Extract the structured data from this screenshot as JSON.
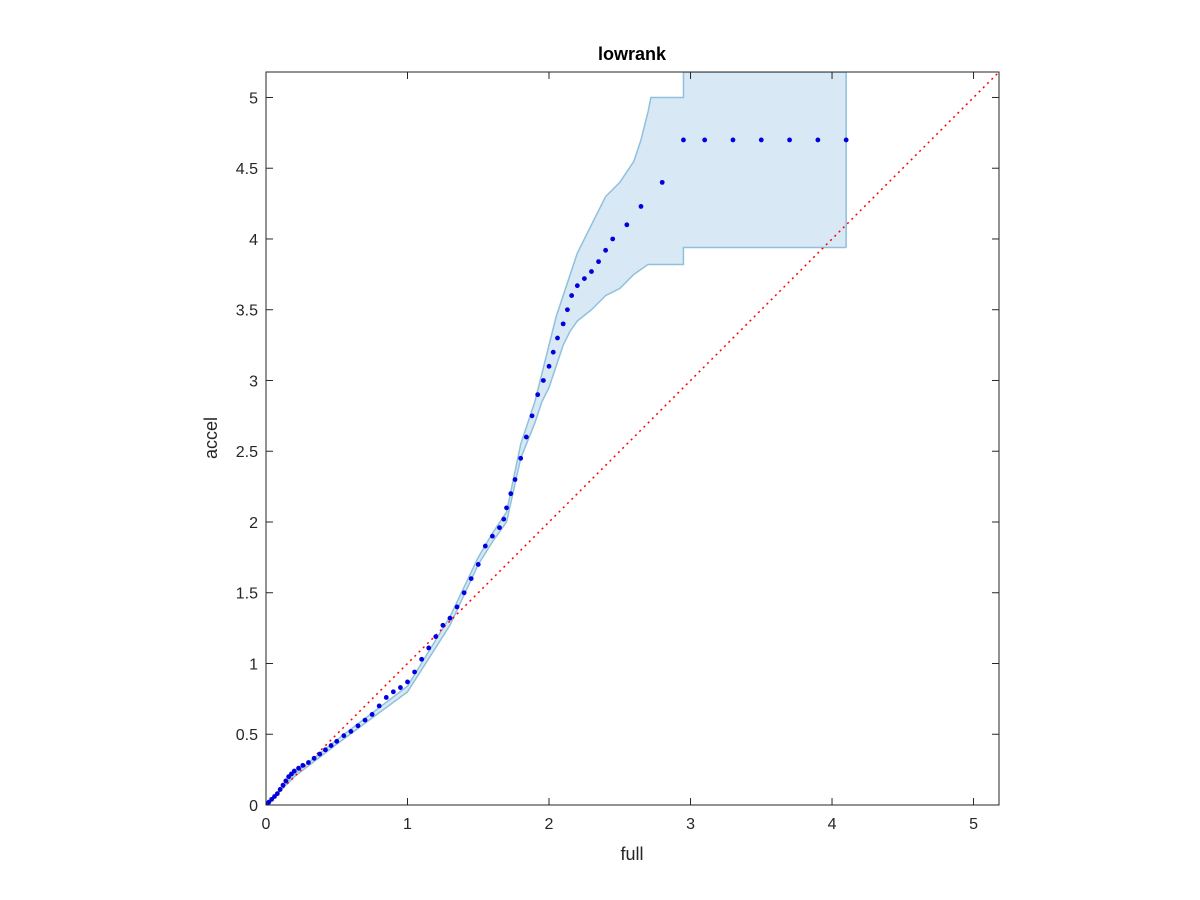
{
  "chart_data": {
    "type": "scatter",
    "title": "lowrank",
    "xlabel": "full",
    "ylabel": "accel",
    "xlim": [
      0,
      5.18
    ],
    "ylim": [
      0,
      5.18
    ],
    "xticks": [
      0,
      1,
      2,
      3,
      4,
      5
    ],
    "xtick_labels": [
      "0",
      "1",
      "2",
      "3",
      "4",
      "5"
    ],
    "yticks": [
      0,
      0.5,
      1,
      1.5,
      2,
      2.5,
      3,
      3.5,
      4,
      4.5,
      5
    ],
    "ytick_labels": [
      "0",
      "0.5",
      "1",
      "1.5",
      "2",
      "2.5",
      "3",
      "3.5",
      "4",
      "4.5",
      "5"
    ],
    "grid": false,
    "reference_line": {
      "style": "dotted",
      "color": "#ff0000",
      "from": [
        0,
        0
      ],
      "to": [
        5.18,
        5.18
      ]
    },
    "band": {
      "color": "#d8e8f4",
      "edge_color": "#8fc0dd",
      "upper": [
        [
          0,
          0
        ],
        [
          0.2,
          0.22
        ],
        [
          0.5,
          0.46
        ],
        [
          1.0,
          0.84
        ],
        [
          1.3,
          1.33
        ],
        [
          1.5,
          1.75
        ],
        [
          1.6,
          1.92
        ],
        [
          1.7,
          2.07
        ],
        [
          1.8,
          2.55
        ],
        [
          1.9,
          2.85
        ],
        [
          1.95,
          3.05
        ],
        [
          2.0,
          3.25
        ],
        [
          2.05,
          3.45
        ],
        [
          2.1,
          3.6
        ],
        [
          2.15,
          3.75
        ],
        [
          2.2,
          3.9
        ],
        [
          2.25,
          4.0
        ],
        [
          2.3,
          4.1
        ],
        [
          2.35,
          4.2
        ],
        [
          2.4,
          4.3
        ],
        [
          2.5,
          4.4
        ],
        [
          2.6,
          4.55
        ],
        [
          2.65,
          4.7
        ],
        [
          2.7,
          4.9
        ],
        [
          2.72,
          5.0
        ],
        [
          2.95,
          5.0
        ],
        [
          2.95,
          5.18
        ],
        [
          4.1,
          5.18
        ]
      ],
      "lower": [
        [
          0,
          0
        ],
        [
          0.2,
          0.2
        ],
        [
          0.5,
          0.43
        ],
        [
          1.0,
          0.8
        ],
        [
          1.3,
          1.27
        ],
        [
          1.5,
          1.7
        ],
        [
          1.6,
          1.86
        ],
        [
          1.7,
          2.0
        ],
        [
          1.8,
          2.45
        ],
        [
          1.9,
          2.7
        ],
        [
          1.95,
          2.85
        ],
        [
          2.0,
          2.95
        ],
        [
          2.05,
          3.1
        ],
        [
          2.1,
          3.25
        ],
        [
          2.15,
          3.35
        ],
        [
          2.2,
          3.42
        ],
        [
          2.3,
          3.5
        ],
        [
          2.4,
          3.6
        ],
        [
          2.5,
          3.65
        ],
        [
          2.6,
          3.75
        ],
        [
          2.7,
          3.82
        ],
        [
          2.95,
          3.82
        ],
        [
          2.95,
          3.94
        ],
        [
          4.1,
          3.94
        ]
      ]
    },
    "series": [
      {
        "color": "#0000e0",
        "marker": "dot",
        "points": [
          [
            0.0,
            0.0
          ],
          [
            0.02,
            0.02
          ],
          [
            0.04,
            0.04
          ],
          [
            0.06,
            0.06
          ],
          [
            0.08,
            0.08
          ],
          [
            0.1,
            0.11
          ],
          [
            0.12,
            0.14
          ],
          [
            0.14,
            0.17
          ],
          [
            0.16,
            0.2
          ],
          [
            0.18,
            0.22
          ],
          [
            0.2,
            0.24
          ],
          [
            0.23,
            0.26
          ],
          [
            0.26,
            0.28
          ],
          [
            0.3,
            0.3
          ],
          [
            0.34,
            0.33
          ],
          [
            0.38,
            0.36
          ],
          [
            0.42,
            0.39
          ],
          [
            0.46,
            0.42
          ],
          [
            0.5,
            0.45
          ],
          [
            0.55,
            0.49
          ],
          [
            0.6,
            0.52
          ],
          [
            0.65,
            0.56
          ],
          [
            0.7,
            0.6
          ],
          [
            0.75,
            0.64
          ],
          [
            0.8,
            0.7
          ],
          [
            0.85,
            0.76
          ],
          [
            0.9,
            0.8
          ],
          [
            0.95,
            0.83
          ],
          [
            1.0,
            0.87
          ],
          [
            1.05,
            0.94
          ],
          [
            1.1,
            1.03
          ],
          [
            1.15,
            1.11
          ],
          [
            1.2,
            1.19
          ],
          [
            1.25,
            1.27
          ],
          [
            1.3,
            1.32
          ],
          [
            1.35,
            1.4
          ],
          [
            1.4,
            1.5
          ],
          [
            1.45,
            1.6
          ],
          [
            1.5,
            1.7
          ],
          [
            1.55,
            1.83
          ],
          [
            1.6,
            1.9
          ],
          [
            1.65,
            1.96
          ],
          [
            1.68,
            2.02
          ],
          [
            1.7,
            2.1
          ],
          [
            1.73,
            2.2
          ],
          [
            1.76,
            2.3
          ],
          [
            1.8,
            2.45
          ],
          [
            1.84,
            2.6
          ],
          [
            1.88,
            2.75
          ],
          [
            1.92,
            2.9
          ],
          [
            1.96,
            3.0
          ],
          [
            2.0,
            3.1
          ],
          [
            2.03,
            3.2
          ],
          [
            2.06,
            3.3
          ],
          [
            2.1,
            3.4
          ],
          [
            2.13,
            3.5
          ],
          [
            2.16,
            3.6
          ],
          [
            2.2,
            3.67
          ],
          [
            2.25,
            3.72
          ],
          [
            2.3,
            3.77
          ],
          [
            2.35,
            3.84
          ],
          [
            2.4,
            3.92
          ],
          [
            2.45,
            4.0
          ],
          [
            2.55,
            4.1
          ],
          [
            2.65,
            4.23
          ],
          [
            2.8,
            4.4
          ],
          [
            2.95,
            4.7
          ],
          [
            3.1,
            4.7
          ],
          [
            3.3,
            4.7
          ],
          [
            3.5,
            4.7
          ],
          [
            3.7,
            4.7
          ],
          [
            3.9,
            4.7
          ],
          [
            4.1,
            4.7
          ]
        ]
      }
    ]
  }
}
